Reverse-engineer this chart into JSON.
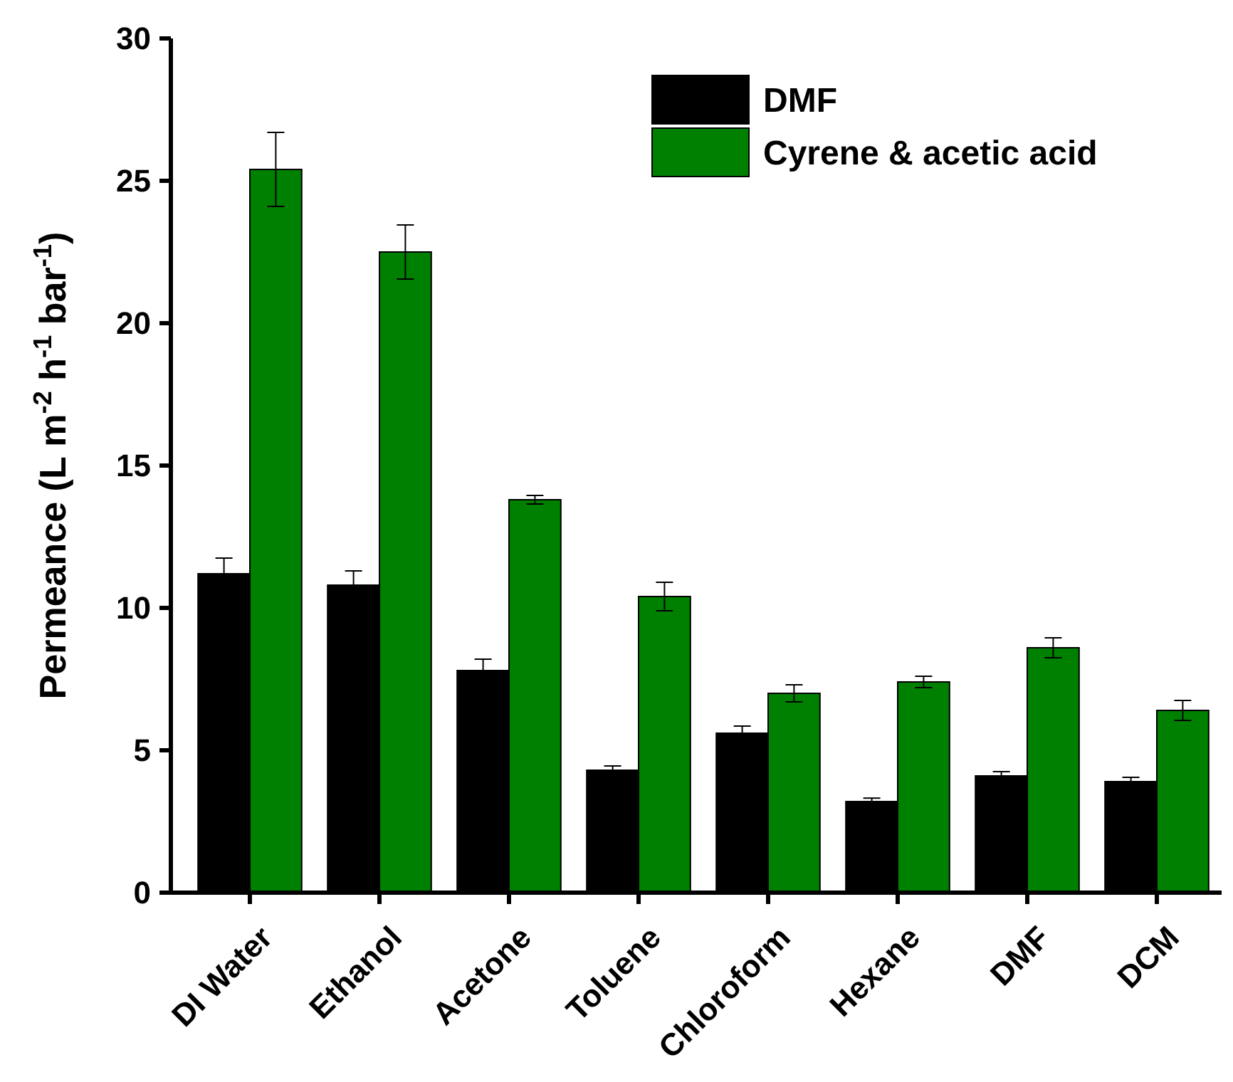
{
  "chart_data": {
    "type": "bar",
    "ylabel": "Permeance (L m$^{-2}$ h$^{-1}$ bar$^{-1}$)",
    "categories": [
      "DI Water",
      "Ethanol",
      "Acetone",
      "Toluene",
      "Chloroform",
      "Hexane",
      "DMF",
      "DCM"
    ],
    "series": [
      {
        "name": "DMF",
        "color": "#000000",
        "values": [
          11.2,
          10.8,
          7.8,
          4.3,
          5.6,
          3.2,
          4.1,
          3.9
        ],
        "errors": [
          0.55,
          0.5,
          0.4,
          0.15,
          0.25,
          0.12,
          0.15,
          0.15
        ]
      },
      {
        "name": "Cyrene & acetic acid",
        "color": "#008000",
        "values": [
          25.4,
          22.5,
          13.8,
          10.4,
          7.0,
          7.4,
          8.6,
          6.4
        ],
        "errors": [
          1.3,
          0.95,
          0.15,
          0.5,
          0.3,
          0.2,
          0.35,
          0.35
        ]
      }
    ],
    "ylim": [
      0,
      30
    ],
    "yticks": [
      0,
      5,
      10,
      15,
      20,
      25,
      30
    ],
    "legend": "top right",
    "grid": false
  }
}
